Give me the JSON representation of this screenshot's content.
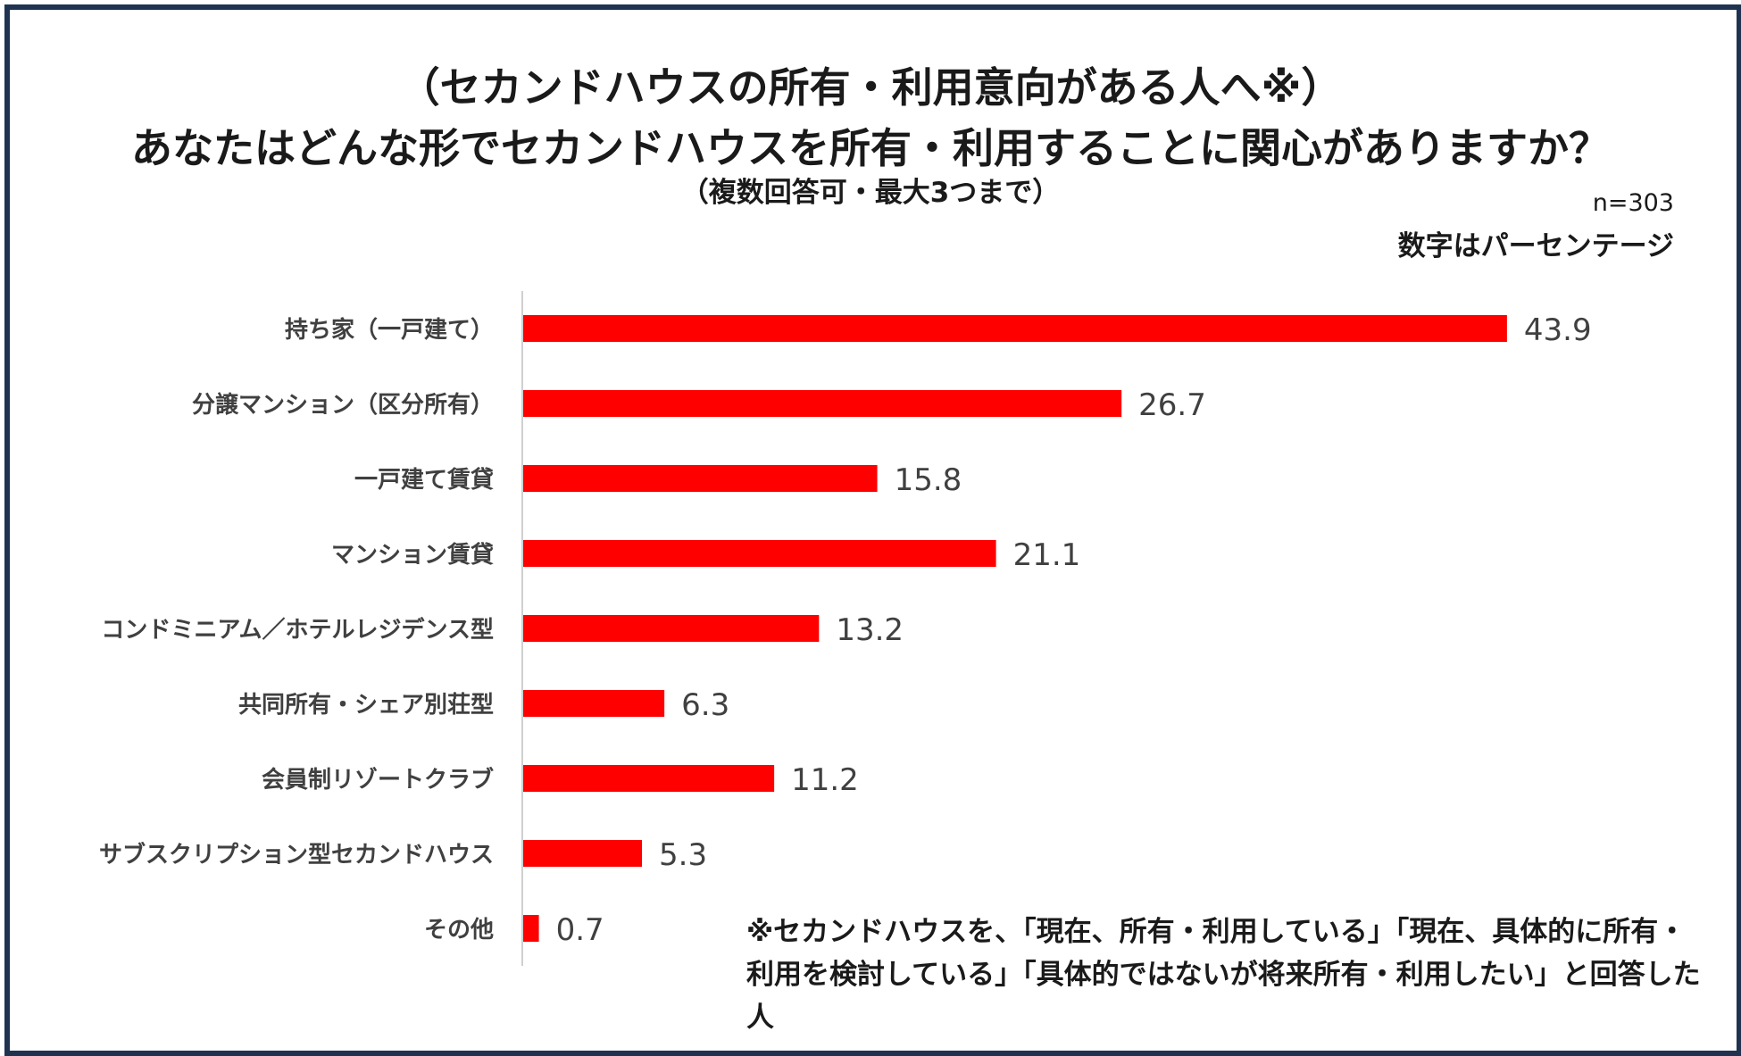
{
  "header": {
    "title_line1": "（セカンドハウスの所有・利用意向がある人へ※）",
    "title_line2": "あなたはどんな形でセカンドハウスを所有・利用することに関心がありますか？",
    "title_line3": "（複数回答可・最大3つまで）",
    "sample_size": "n=303",
    "unit_note": "数字はパーセンテージ"
  },
  "footnote": "※セカンドハウスを、「現在、所有・利用している」「現在、具体的に所有・利用を検討している」「具体的ではないが将来所有・利用したい」と回答した人",
  "colors": {
    "bar": "#ff0000",
    "frame": "#1f3350",
    "axis": "#d0d0d0",
    "text": "#404040"
  },
  "chart_data": {
    "type": "bar",
    "orientation": "horizontal",
    "categories": [
      "持ち家（一戸建て）",
      "分譲マンション（区分所有）",
      "一戸建て賃貸",
      "マンション賃貸",
      "コンドミニアム／ホテルレジデンス型",
      "共同所有・シェア別荘型",
      "会員制リゾートクラブ",
      "サブスクリプション型セカンドハウス",
      "その他"
    ],
    "values": [
      43.9,
      26.7,
      15.8,
      21.1,
      13.2,
      6.3,
      11.2,
      5.3,
      0.7
    ],
    "value_labels": [
      "43.9",
      "26.7",
      "15.8",
      "21.1",
      "13.2",
      "6.3",
      "11.2",
      "5.3",
      "0.7"
    ],
    "xlim": [
      0,
      50
    ],
    "grid": false,
    "legend": "none"
  }
}
